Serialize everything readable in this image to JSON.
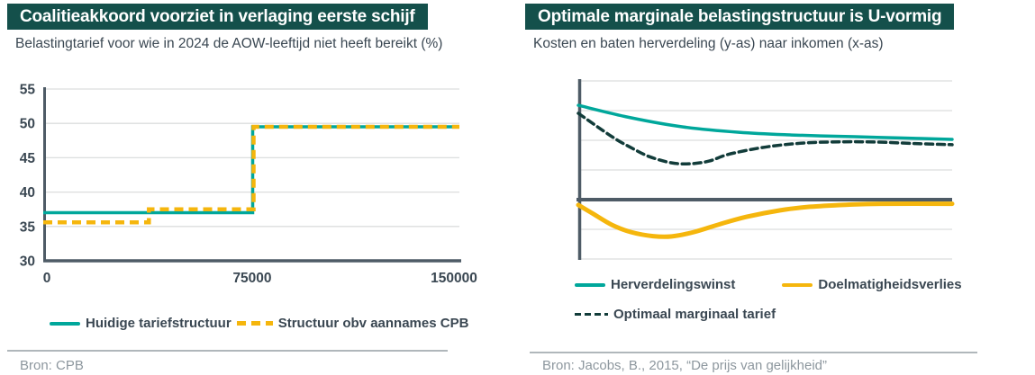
{
  "colors": {
    "band": "#14504B",
    "teal": "#00A79B",
    "yellow": "#F5B60D",
    "dark": "#123C3A",
    "axis": "#4E5B66",
    "grid": "#DCDEDE",
    "text": "#3A4752",
    "muted": "#8D979E",
    "divider": "#B0B7BB"
  },
  "left_panel": {
    "title": "Coalitieakkoord voorziet in verlaging eerste schijf",
    "subtitle": "Belastingtarief voor wie in 2024 de AOW-leeftijd niet heeft bereikt (%)",
    "source": "Bron: CPB",
    "legend": [
      {
        "label": "Huidige tariefstructuur",
        "style": "solid",
        "color": "teal"
      },
      {
        "label": "Structuur obv aannames CPB",
        "style": "dashed",
        "color": "yellow"
      }
    ]
  },
  "right_panel": {
    "title": "Optimale marginale belastingstructuur is U-vormig",
    "subtitle": "Kosten en baten herverdeling (y-as) naar inkomen (x-as)",
    "source": "Bron: Jacobs, B., 2015, “De prijs van gelijkheid”",
    "legend": [
      {
        "label": "Herverdelingswinst",
        "style": "solid",
        "color": "teal"
      },
      {
        "label": "Doelmatigheidsverlies",
        "style": "solid",
        "color": "yellow"
      },
      {
        "label": "Optimaal marginaal tarief",
        "style": "dashed",
        "color": "dark"
      }
    ]
  },
  "chart_data": [
    {
      "type": "line",
      "title": "Coalitieakkoord voorziet in verlaging eerste schijf",
      "subtitle": "Belastingtarief voor wie in 2024 de AOW-leeftijd niet heeft bereikt (%)",
      "xlim": [
        0,
        150000
      ],
      "ylim": [
        30,
        55
      ],
      "x_ticks": [
        0,
        75000,
        150000
      ],
      "y_ticks": [
        30,
        35,
        40,
        45,
        50,
        55
      ],
      "grid": "horizontal",
      "legend_position": "bottom",
      "series": [
        {
          "name": "Huidige tariefstructuur",
          "color": "teal",
          "dash": false,
          "points": [
            [
              0,
              37.0
            ],
            [
              75500,
              37.0
            ],
            [
              75500,
              49.5
            ],
            [
              150000,
              49.5
            ]
          ]
        },
        {
          "name": "Structuur obv aannames CPB",
          "color": "yellow",
          "dash": true,
          "points": [
            [
              0,
              35.6
            ],
            [
              38100,
              35.6
            ],
            [
              38100,
              37.5
            ],
            [
              75800,
              37.5
            ],
            [
              75800,
              49.5
            ],
            [
              150000,
              49.5
            ]
          ]
        }
      ]
    },
    {
      "type": "line",
      "title": "Optimale marginale belastingstructuur is U-vormig",
      "subtitle": "Kosten en baten herverdeling (y-as) naar inkomen (x-as)",
      "note": "conceptual curves; axes shown without scale, y in gridline units relative to dark baseline at 0",
      "xlim": [
        0,
        100
      ],
      "ylim": [
        -2,
        4
      ],
      "baseline": 0,
      "gridline_values": [
        4,
        3,
        2,
        1,
        -1,
        -2
      ],
      "legend_position": "bottom",
      "series": [
        {
          "name": "Herverdelingswinst",
          "color": "teal",
          "dash": false,
          "points": [
            [
              0,
              3.18
            ],
            [
              14,
              2.76
            ],
            [
              28,
              2.45
            ],
            [
              43,
              2.27
            ],
            [
              57,
              2.18
            ],
            [
              74,
              2.12
            ],
            [
              86,
              2.08
            ],
            [
              100,
              2.03
            ]
          ]
        },
        {
          "name": "Optimaal marginaal tarief",
          "color": "dark",
          "dash": true,
          "points": [
            [
              0,
              2.91
            ],
            [
              9,
              2.12
            ],
            [
              14,
              1.76
            ],
            [
              19,
              1.45
            ],
            [
              25,
              1.24
            ],
            [
              30,
              1.21
            ],
            [
              35,
              1.3
            ],
            [
              40,
              1.52
            ],
            [
              48,
              1.73
            ],
            [
              55,
              1.85
            ],
            [
              62,
              1.92
            ],
            [
              71,
              1.95
            ],
            [
              80,
              1.94
            ],
            [
              90,
              1.89
            ],
            [
              100,
              1.85
            ]
          ]
        },
        {
          "name": "Doelmatigheidsverlies",
          "color": "yellow",
          "dash": false,
          "points": [
            [
              0,
              -0.18
            ],
            [
              4,
              -0.48
            ],
            [
              9,
              -0.85
            ],
            [
              14,
              -1.09
            ],
            [
              20,
              -1.23
            ],
            [
              25,
              -1.24
            ],
            [
              31,
              -1.09
            ],
            [
              38,
              -0.82
            ],
            [
              45,
              -0.58
            ],
            [
              54,
              -0.36
            ],
            [
              62,
              -0.24
            ],
            [
              72,
              -0.17
            ],
            [
              81,
              -0.14
            ],
            [
              100,
              -0.14
            ]
          ]
        }
      ]
    }
  ]
}
